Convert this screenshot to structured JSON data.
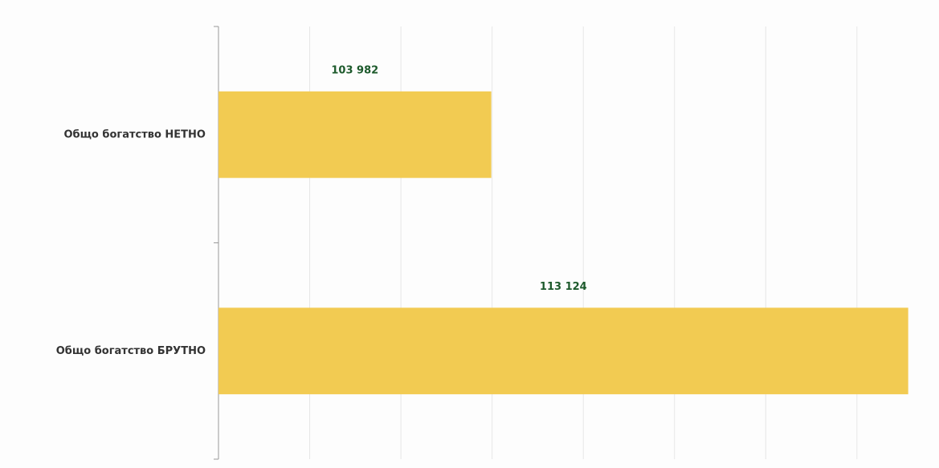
{
  "chart_data": {
    "type": "hbar",
    "categories": [
      "Общо богатство НЕТНО",
      "Общо богатство БРУТНО"
    ],
    "values": [
      103982,
      113124
    ],
    "value_labels": [
      "103 982",
      "113 124"
    ],
    "color": "#f2cb52",
    "label_color": "#1d5a2c",
    "xlim": [
      98000,
      113500
    ],
    "xticks": [
      98000,
      100000,
      102000,
      104000,
      106000,
      108000,
      110000,
      112000
    ],
    "grid": true
  }
}
